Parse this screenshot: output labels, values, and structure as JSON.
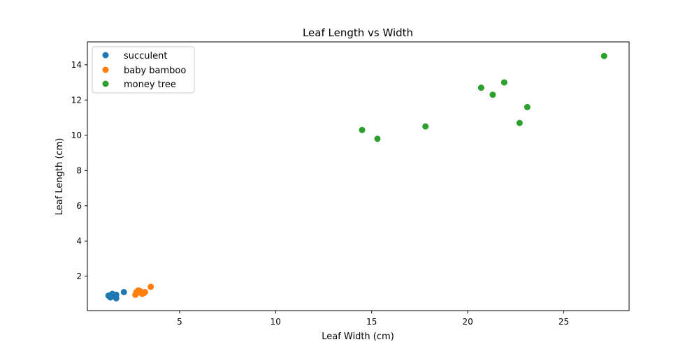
{
  "chart_data": {
    "type": "scatter",
    "title": "Leaf Length vs Width",
    "xlabel": "Leaf Width (cm)",
    "ylabel": "Leaf Length (cm)",
    "xlim": [
      0.2,
      28.4
    ],
    "ylim": [
      0.05,
      15.3
    ],
    "xticks": [
      5,
      10,
      15,
      20,
      25
    ],
    "yticks": [
      2,
      4,
      6,
      8,
      10,
      12,
      14
    ],
    "grid": false,
    "legend_position": "top-left",
    "series": [
      {
        "name": "succulent",
        "color": "#1f77b4",
        "points": [
          [
            1.3,
            0.9
          ],
          [
            1.4,
            0.8
          ],
          [
            1.5,
            1.0
          ],
          [
            1.6,
            0.85
          ],
          [
            1.7,
            0.95
          ],
          [
            1.7,
            0.75
          ],
          [
            1.45,
            0.95
          ],
          [
            1.55,
            0.9
          ],
          [
            2.1,
            1.1
          ],
          [
            1.35,
            0.85
          ]
        ]
      },
      {
        "name": "baby bamboo",
        "color": "#ff7f0e",
        "points": [
          [
            2.7,
            0.95
          ],
          [
            2.75,
            1.1
          ],
          [
            2.85,
            1.2
          ],
          [
            2.95,
            1.15
          ],
          [
            3.0,
            1.05
          ],
          [
            3.05,
            1.0
          ],
          [
            3.15,
            1.05
          ],
          [
            3.2,
            1.1
          ],
          [
            3.5,
            1.4
          ],
          [
            2.9,
            1.1
          ]
        ]
      },
      {
        "name": "money tree",
        "color": "#2ca02c",
        "points": [
          [
            14.5,
            10.3
          ],
          [
            15.3,
            9.8
          ],
          [
            17.8,
            10.5
          ],
          [
            20.7,
            12.7
          ],
          [
            21.3,
            12.3
          ],
          [
            21.9,
            13.0
          ],
          [
            22.7,
            10.7
          ],
          [
            23.1,
            11.6
          ],
          [
            27.1,
            14.5
          ]
        ]
      }
    ]
  }
}
